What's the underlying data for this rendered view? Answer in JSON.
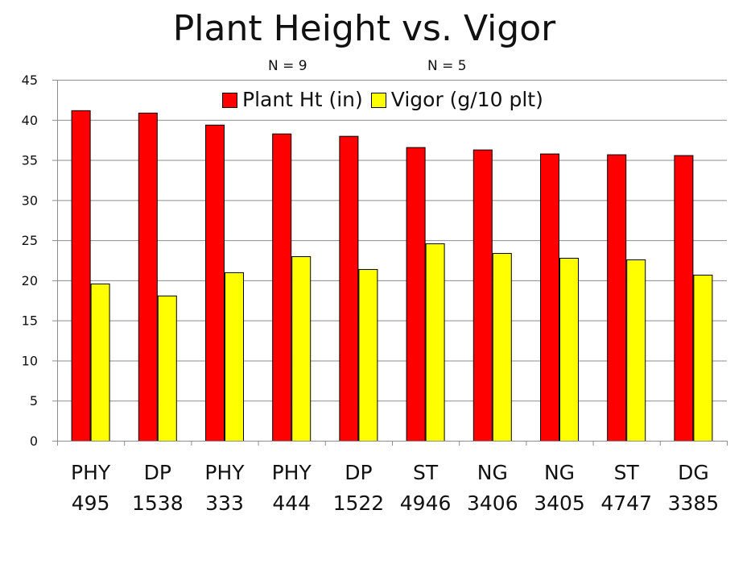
{
  "chart_data": {
    "type": "bar",
    "title": "Plant Height vs. Vigor",
    "annotations": [
      "N = 9",
      "N = 5"
    ],
    "categories": [
      [
        "PHY",
        "495"
      ],
      [
        "DP",
        "1538"
      ],
      [
        "PHY",
        "333"
      ],
      [
        "PHY",
        "444"
      ],
      [
        "DP",
        "1522"
      ],
      [
        "ST",
        "4946"
      ],
      [
        "NG",
        "3406"
      ],
      [
        "NG",
        "3405"
      ],
      [
        "ST",
        "4747"
      ],
      [
        "DG",
        "3385"
      ]
    ],
    "series": [
      {
        "name": "Plant Ht (in)",
        "color": "#ff0000",
        "values": [
          41.2,
          40.9,
          39.4,
          38.3,
          38.0,
          36.6,
          36.3,
          35.8,
          35.7,
          35.6
        ]
      },
      {
        "name": "Vigor (g/10 plt)",
        "color": "#ffff00",
        "values": [
          19.6,
          18.1,
          21.0,
          23.0,
          21.4,
          24.6,
          23.4,
          22.8,
          22.6,
          20.7
        ]
      }
    ],
    "xlabel": "",
    "ylabel": "",
    "ylim": [
      0,
      45
    ],
    "yticks": [
      0,
      5,
      10,
      15,
      20,
      25,
      30,
      35,
      40,
      45
    ],
    "grid": true,
    "legend_position": "top-center"
  }
}
